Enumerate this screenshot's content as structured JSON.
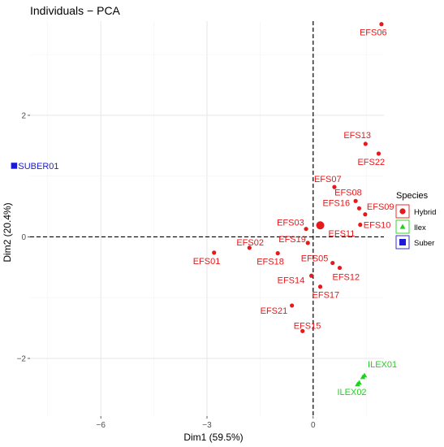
{
  "chart_data": {
    "type": "scatter",
    "title": "Individuals − PCA",
    "xlabel": "Dim1 (59.5%)",
    "ylabel": "Dim2 (20.4%)",
    "xlim": [
      -8.0,
      2.0
    ],
    "ylim": [
      -2.95,
      3.55
    ],
    "x_ticks": [
      -6,
      -3,
      0
    ],
    "x_tick_labels": [
      "−6",
      "−3",
      "0"
    ],
    "y_ticks": [
      -2,
      0,
      2
    ],
    "y_tick_labels": [
      "−2",
      "0",
      "2"
    ],
    "grid": true,
    "reference_lines": {
      "x": 0,
      "y": 0,
      "style": "dashed"
    },
    "legend": {
      "title": "Species",
      "placement": "right",
      "entries": [
        {
          "label": "Hybrid",
          "color": "#e41a1c",
          "shape": "circle"
        },
        {
          "label": "Ilex",
          "color": "#1fd11f",
          "shape": "triangle"
        },
        {
          "label": "Suber",
          "color": "#1a1adb",
          "shape": "square"
        }
      ]
    },
    "series": [
      {
        "name": "Hybrid",
        "color": "#e41a1c",
        "shape": "circle",
        "points": [
          {
            "label": "EFS06",
            "x": 1.93,
            "y": 3.5
          },
          {
            "label": "EFS13",
            "x": 1.48,
            "y": 1.53
          },
          {
            "label": "EFS22",
            "x": 1.85,
            "y": 1.37
          },
          {
            "label": "EFS07",
            "x": 0.6,
            "y": 0.82
          },
          {
            "label": "EFS08",
            "x": 1.2,
            "y": 0.59
          },
          {
            "label": "EFS16",
            "x": 1.3,
            "y": 0.47
          },
          {
            "label": "EFS09",
            "x": 1.47,
            "y": 0.37
          },
          {
            "label": "EFS11",
            "x": 0.2,
            "y": 0.19,
            "centroid": true
          },
          {
            "label": "EFS10",
            "x": 1.33,
            "y": 0.2
          },
          {
            "label": "EFS03",
            "x": -0.2,
            "y": 0.13
          },
          {
            "label": "EFS19",
            "x": -0.15,
            "y": -0.1
          },
          {
            "label": "EFS02",
            "x": -1.8,
            "y": -0.18
          },
          {
            "label": "EFS01",
            "x": -2.8,
            "y": -0.26
          },
          {
            "label": "EFS18",
            "x": -1.0,
            "y": -0.27
          },
          {
            "label": "EFS05",
            "x": 0.55,
            "y": -0.43
          },
          {
            "label": "EFS12",
            "x": 0.75,
            "y": -0.51
          },
          {
            "label": "EFS14",
            "x": -0.05,
            "y": -0.64
          },
          {
            "label": "EFS17",
            "x": 0.2,
            "y": -0.82
          },
          {
            "label": "EFS21",
            "x": -0.6,
            "y": -1.13
          },
          {
            "label": "EFS15",
            "x": -0.3,
            "y": -1.55
          }
        ]
      },
      {
        "name": "Ilex",
        "color": "#1fd11f",
        "shape": "triangle",
        "points": [
          {
            "label": "ILEX01",
            "x": 1.45,
            "y": -2.28
          },
          {
            "label": "ILEX02",
            "x": 1.3,
            "y": -2.4
          }
        ]
      },
      {
        "name": "Suber",
        "color": "#1a1adb",
        "shape": "square",
        "points": [
          {
            "label": "SUBER01",
            "x": -8.45,
            "y": 1.17
          }
        ]
      }
    ]
  }
}
